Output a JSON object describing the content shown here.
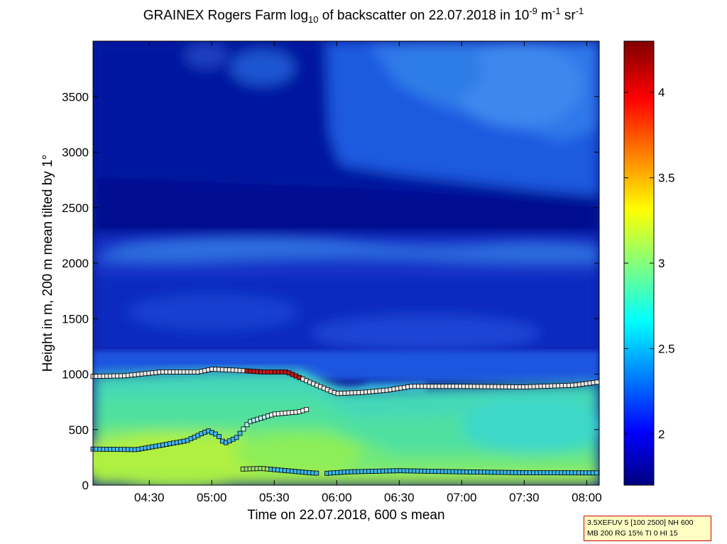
{
  "chart_data": {
    "type": "heatmap",
    "title_main": "GRAINEX Rogers Farm log",
    "title_sub": "10",
    "title_mid": " of backscatter on 22.07.2018 in 10",
    "title_sup1": "-9",
    "title_mid2": " m",
    "title_sup2": "-1",
    "title_mid3": " sr",
    "title_sup3": "-1",
    "xlabel": "Time on 22.07.2018, 600 s mean",
    "ylabel": "Height in m, 200 m mean tilted by 1°",
    "x_ticks": [
      "04:30",
      "05:00",
      "05:30",
      "06:00",
      "06:30",
      "07:00",
      "07:30",
      "08:00"
    ],
    "y_ticks": [
      "0",
      "500",
      "1000",
      "1500",
      "2000",
      "2500",
      "3000",
      "3500"
    ],
    "colorbar_ticks": [
      "2",
      "2.5",
      "3",
      "3.5",
      "4"
    ],
    "colorbar_range": [
      1.7,
      4.3
    ],
    "ylim": [
      0,
      4000
    ],
    "x_range_hours": [
      4.05,
      8.1
    ],
    "mixing_layer_top": {
      "time": [
        4.05,
        4.3,
        4.6,
        4.9,
        5.0,
        5.1,
        5.2,
        5.4,
        5.6,
        5.8,
        6.0,
        6.2,
        6.4,
        6.6,
        7.0,
        7.5,
        7.9,
        8.1
      ],
      "height": [
        980,
        985,
        1020,
        1020,
        1045,
        1040,
        1035,
        1020,
        1020,
        920,
        825,
        835,
        855,
        890,
        890,
        885,
        900,
        930
      ]
    },
    "residual_layer": {
      "time": [
        4.05,
        4.4,
        4.8,
        4.97,
        5.05,
        5.1,
        5.2,
        5.3,
        5.5,
        5.7,
        5.78
      ],
      "height": [
        325,
        320,
        400,
        490,
        450,
        375,
        430,
        570,
        640,
        660,
        690
      ]
    },
    "surface_layer": {
      "time": [
        5.25,
        5.4,
        5.8,
        5.9,
        6.1,
        6.5,
        7.0,
        7.5,
        8.1
      ],
      "height": [
        145,
        150,
        110,
        105,
        120,
        130,
        120,
        112,
        110
      ]
    },
    "info_line1": "3.5XEFUV 5 [100 2500] NH 600",
    "info_line2": "MB 200 RG 15% TI 0 HI 15"
  }
}
